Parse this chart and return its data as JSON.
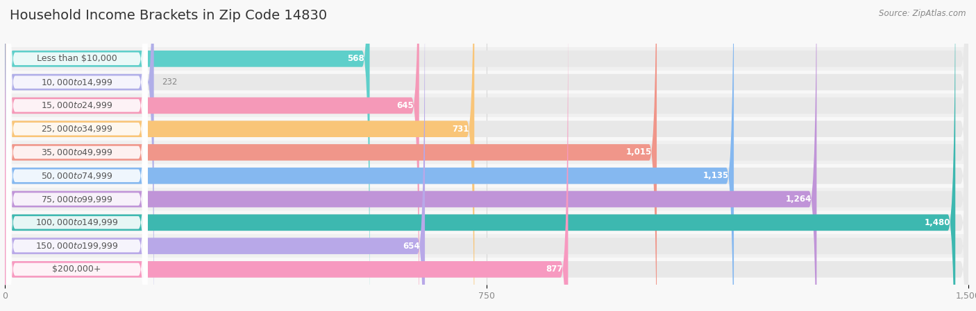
{
  "title": "Household Income Brackets in Zip Code 14830",
  "source": "Source: ZipAtlas.com",
  "categories": [
    "Less than $10,000",
    "$10,000 to $14,999",
    "$15,000 to $24,999",
    "$25,000 to $34,999",
    "$35,000 to $49,999",
    "$50,000 to $74,999",
    "$75,000 to $99,999",
    "$100,000 to $149,999",
    "$150,000 to $199,999",
    "$200,000+"
  ],
  "values": [
    568,
    232,
    645,
    731,
    1015,
    1135,
    1264,
    1480,
    654,
    877
  ],
  "bar_colors": [
    "#5ecfca",
    "#b0aee8",
    "#f599b8",
    "#f9c578",
    "#f0968a",
    "#85b8f0",
    "#c094d8",
    "#3db8b0",
    "#b8a8e8",
    "#f799c0"
  ],
  "xlim": [
    0,
    1500
  ],
  "xticks": [
    0,
    750,
    1500
  ],
  "background_color": "#f8f8f8",
  "bar_bg_color": "#e8e8e8",
  "row_bg_colors": [
    "#f0f0f0",
    "#f8f8f8"
  ],
  "title_fontsize": 14,
  "label_fontsize": 9,
  "value_fontsize": 8.5,
  "value_inside_threshold": 350,
  "pill_bg_color": "#ffffff",
  "pill_text_color": "#555555",
  "value_inside_color": "#ffffff",
  "value_outside_color": "#888888",
  "grid_color": "#d8d8d8",
  "tick_color": "#888888",
  "bar_height": 0.7,
  "bar_gap": 0.3
}
